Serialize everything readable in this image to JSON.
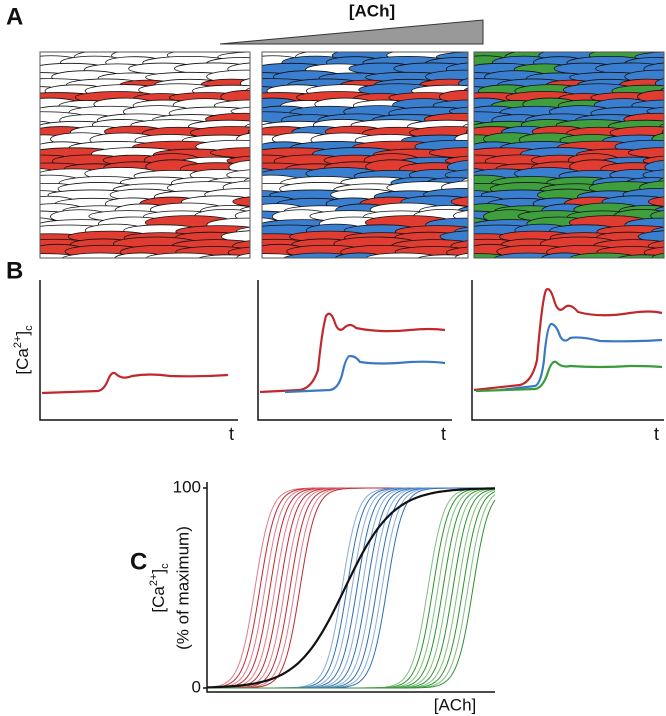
{
  "panel_a": {
    "label": "A",
    "gradient_label": "[ACh]"
  },
  "panel_b": {
    "label": "B",
    "y_label": {
      "base": "[Ca",
      "sup": "2+",
      "close": "]",
      "sub": "c"
    },
    "x_labels": [
      "t",
      "t",
      "t"
    ]
  },
  "chart_data": {
    "type": "line",
    "label": "C",
    "y_label": {
      "base": "[Ca",
      "sup": "2+",
      "close": "]",
      "sub": "c",
      "line2": "(% of maximum)"
    },
    "x_label": "[ACh]",
    "ylim": [
      0,
      100
    ],
    "yticks": [
      0,
      100
    ]
  }
}
